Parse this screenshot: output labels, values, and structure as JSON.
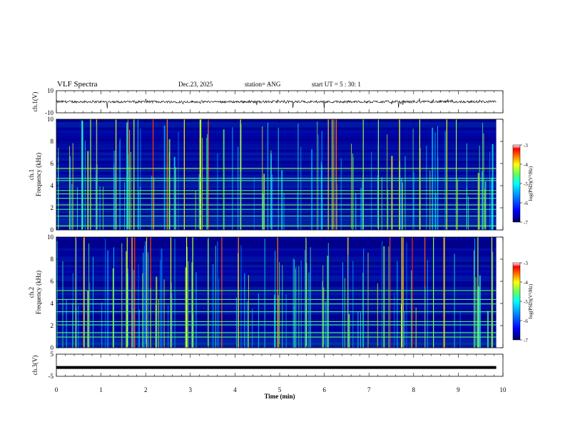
{
  "header": {
    "title": "VLF Spectra",
    "date": "Dec.23, 2025",
    "station": "station= ANG",
    "start": "start  UT =   5 : 30: 1"
  },
  "chart_data": [
    {
      "type": "line",
      "panel": "ch1-waveform",
      "ylabel": "ch.1(V)",
      "ylim": [
        -10,
        10
      ],
      "ytick_labels": [
        "10",
        "-10"
      ],
      "baseline": 0,
      "x_range_min": [
        0,
        9.85
      ]
    },
    {
      "type": "heatmap",
      "panel": "ch1-spectrogram",
      "ylabel": "ch.1\nFrequency (kHz)",
      "ylim": [
        0,
        10
      ],
      "ytick_labels": [
        "0",
        "2",
        "4",
        "6",
        "8",
        "10"
      ],
      "colorbar": {
        "label": "log(PSD)(V²/Hz)",
        "range": [
          -7,
          -3
        ],
        "tick_labels": [
          "-3",
          "-4",
          "-5",
          "-6",
          "-7"
        ]
      },
      "steady_line_freqs_khz": [
        0.4,
        1.3,
        1.9,
        2.3,
        2.9,
        3.3,
        3.6,
        4.5,
        4.7,
        5.6
      ],
      "note": "dense broadband impulsive emissions (sferics) across 0-10 kHz"
    },
    {
      "type": "heatmap",
      "panel": "ch2-spectrogram",
      "ylabel": "ch.2\nFrequency (kHz)",
      "ylim": [
        0,
        10
      ],
      "ytick_labels": [
        "0",
        "2",
        "4",
        "6",
        "8",
        "10"
      ],
      "colorbar": {
        "label": "log(PSD)(V²/Hz)",
        "range": [
          -7,
          -3
        ],
        "tick_labels": [
          "-3",
          "-4",
          "-5",
          "-6",
          "-7"
        ]
      },
      "steady_line_freqs_khz": [
        1.0,
        1.4,
        2.1,
        2.4,
        3.3,
        4.0,
        4.4,
        5.2
      ],
      "note": "dense broadband impulsive emissions (sferics) across 0-10 kHz"
    },
    {
      "type": "line",
      "panel": "ch3-waveform",
      "ylabel": "ch.3(V)",
      "ylim": [
        -5,
        5
      ],
      "ytick_labels": [
        "5",
        "-5"
      ],
      "baseline": -1
    }
  ],
  "xaxis": {
    "label": "Time (min)",
    "range": [
      0,
      10
    ],
    "tick_labels": [
      "0",
      "1",
      "2",
      "3",
      "4",
      "5",
      "6",
      "7",
      "8",
      "9",
      "10"
    ]
  },
  "colors": {
    "background": "#00003a",
    "colormap": [
      "#000080",
      "#0000ff",
      "#0080ff",
      "#00ffff",
      "#80ff80",
      "#ffff00",
      "#ff8000",
      "#ff0000",
      "#ffffff"
    ]
  }
}
